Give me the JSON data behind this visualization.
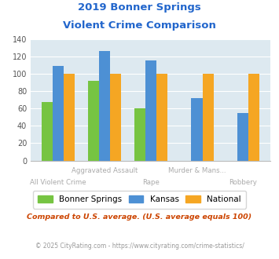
{
  "title_line1": "2019 Bonner Springs",
  "title_line2": "Violent Crime Comparison",
  "categories": [
    "All Violent Crime",
    "Aggravated Assault",
    "Rape",
    "Murder & Mans...",
    "Robbery"
  ],
  "bonner_springs": [
    67,
    92,
    60,
    0,
    0
  ],
  "kansas": [
    109,
    126,
    115,
    72,
    55
  ],
  "national": [
    100,
    100,
    100,
    100,
    100
  ],
  "color_bonner": "#76c442",
  "color_kansas": "#4d90d4",
  "color_national": "#f5a623",
  "ylim": [
    0,
    140
  ],
  "yticks": [
    0,
    20,
    40,
    60,
    80,
    100,
    120,
    140
  ],
  "title_color": "#2266cc",
  "axes_bg": "#dde9f0",
  "fig_bg": "#ffffff",
  "legend_labels": [
    "Bonner Springs",
    "Kansas",
    "National"
  ],
  "footnote1": "Compared to U.S. average. (U.S. average equals 100)",
  "footnote2": "© 2025 CityRating.com - https://www.cityrating.com/crime-statistics/",
  "footnote1_color": "#cc4400",
  "footnote2_color": "#999999",
  "bar_width": 0.24,
  "xlabel_color": "#aaaaaa"
}
